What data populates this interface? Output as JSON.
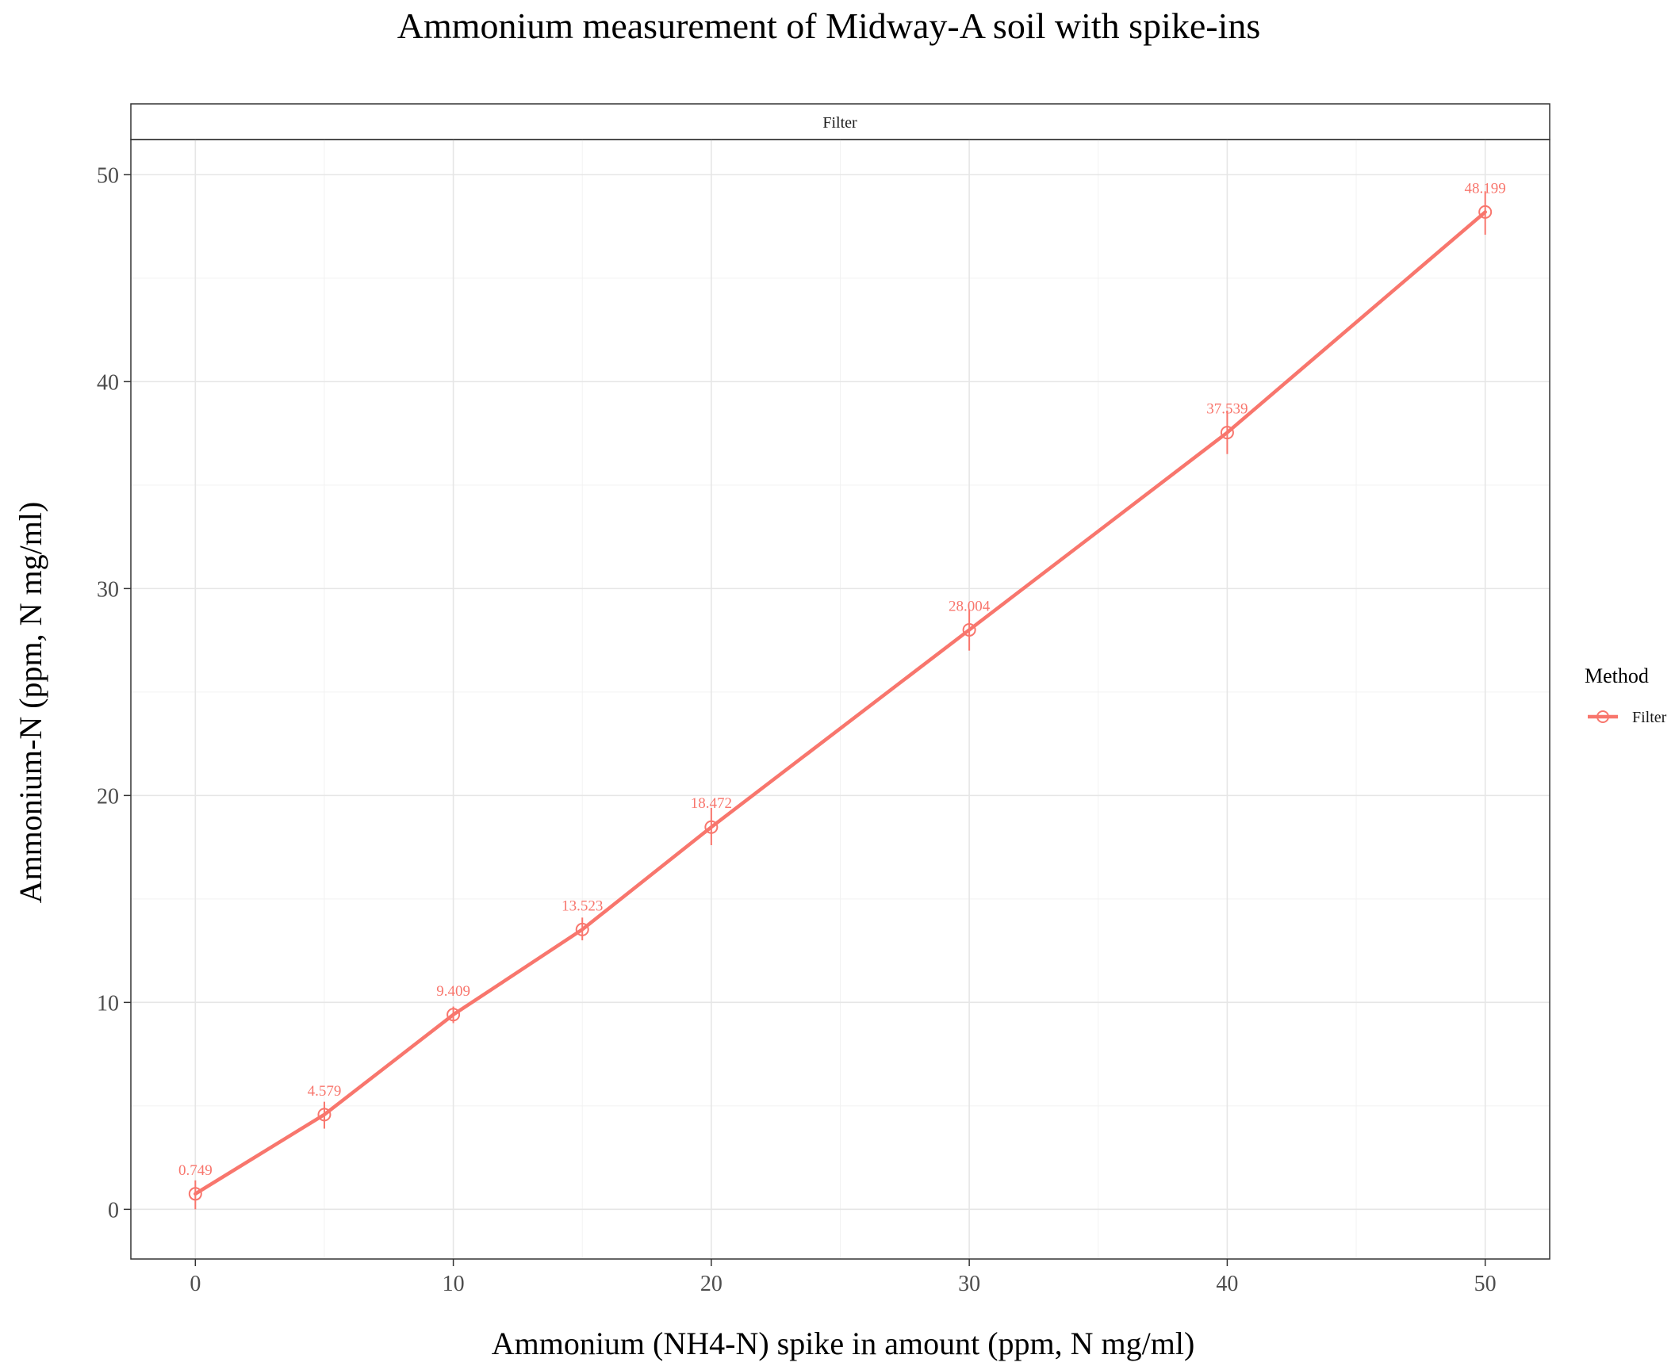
{
  "chart_data": {
    "type": "line",
    "title": "Ammonium measurement of Midway-A soil with spike-ins",
    "xlabel": "Ammonium (NH4-N) spike in amount (ppm, N mg/ml)",
    "ylabel": "Ammonium-N (ppm, N mg/ml)",
    "facet_label": "Filter",
    "xlim": [
      -2.5,
      52.5
    ],
    "ylim": [
      -2.4,
      51.7
    ],
    "x_ticks": [
      0,
      10,
      20,
      30,
      40,
      50
    ],
    "y_ticks": [
      0,
      10,
      20,
      30,
      40,
      50
    ],
    "grid": true,
    "legend": {
      "title": "Method",
      "position": "right",
      "entries": [
        "Filter"
      ]
    },
    "series": [
      {
        "name": "Filter",
        "color": "#F8766D",
        "points": [
          {
            "x": 0,
            "y": 0.749,
            "label": "0.749",
            "err_low": 0.0,
            "err_high": 1.4
          },
          {
            "x": 5,
            "y": 4.579,
            "label": "4.579",
            "err_low": 3.9,
            "err_high": 5.2
          },
          {
            "x": 10,
            "y": 9.409,
            "label": "9.409",
            "err_low": 9.0,
            "err_high": 9.8
          },
          {
            "x": 15,
            "y": 13.523,
            "label": "13.523",
            "err_low": 13.0,
            "err_high": 14.1
          },
          {
            "x": 20,
            "y": 18.472,
            "label": "18.472",
            "err_low": 17.6,
            "err_high": 19.4
          },
          {
            "x": 30,
            "y": 28.004,
            "label": "28.004",
            "err_low": 27.0,
            "err_high": 29.0
          },
          {
            "x": 40,
            "y": 37.539,
            "label": "37.539",
            "err_low": 36.5,
            "err_high": 38.6
          },
          {
            "x": 50,
            "y": 48.199,
            "label": "48.199",
            "err_low": 47.1,
            "err_high": 49.2
          }
        ]
      }
    ]
  }
}
